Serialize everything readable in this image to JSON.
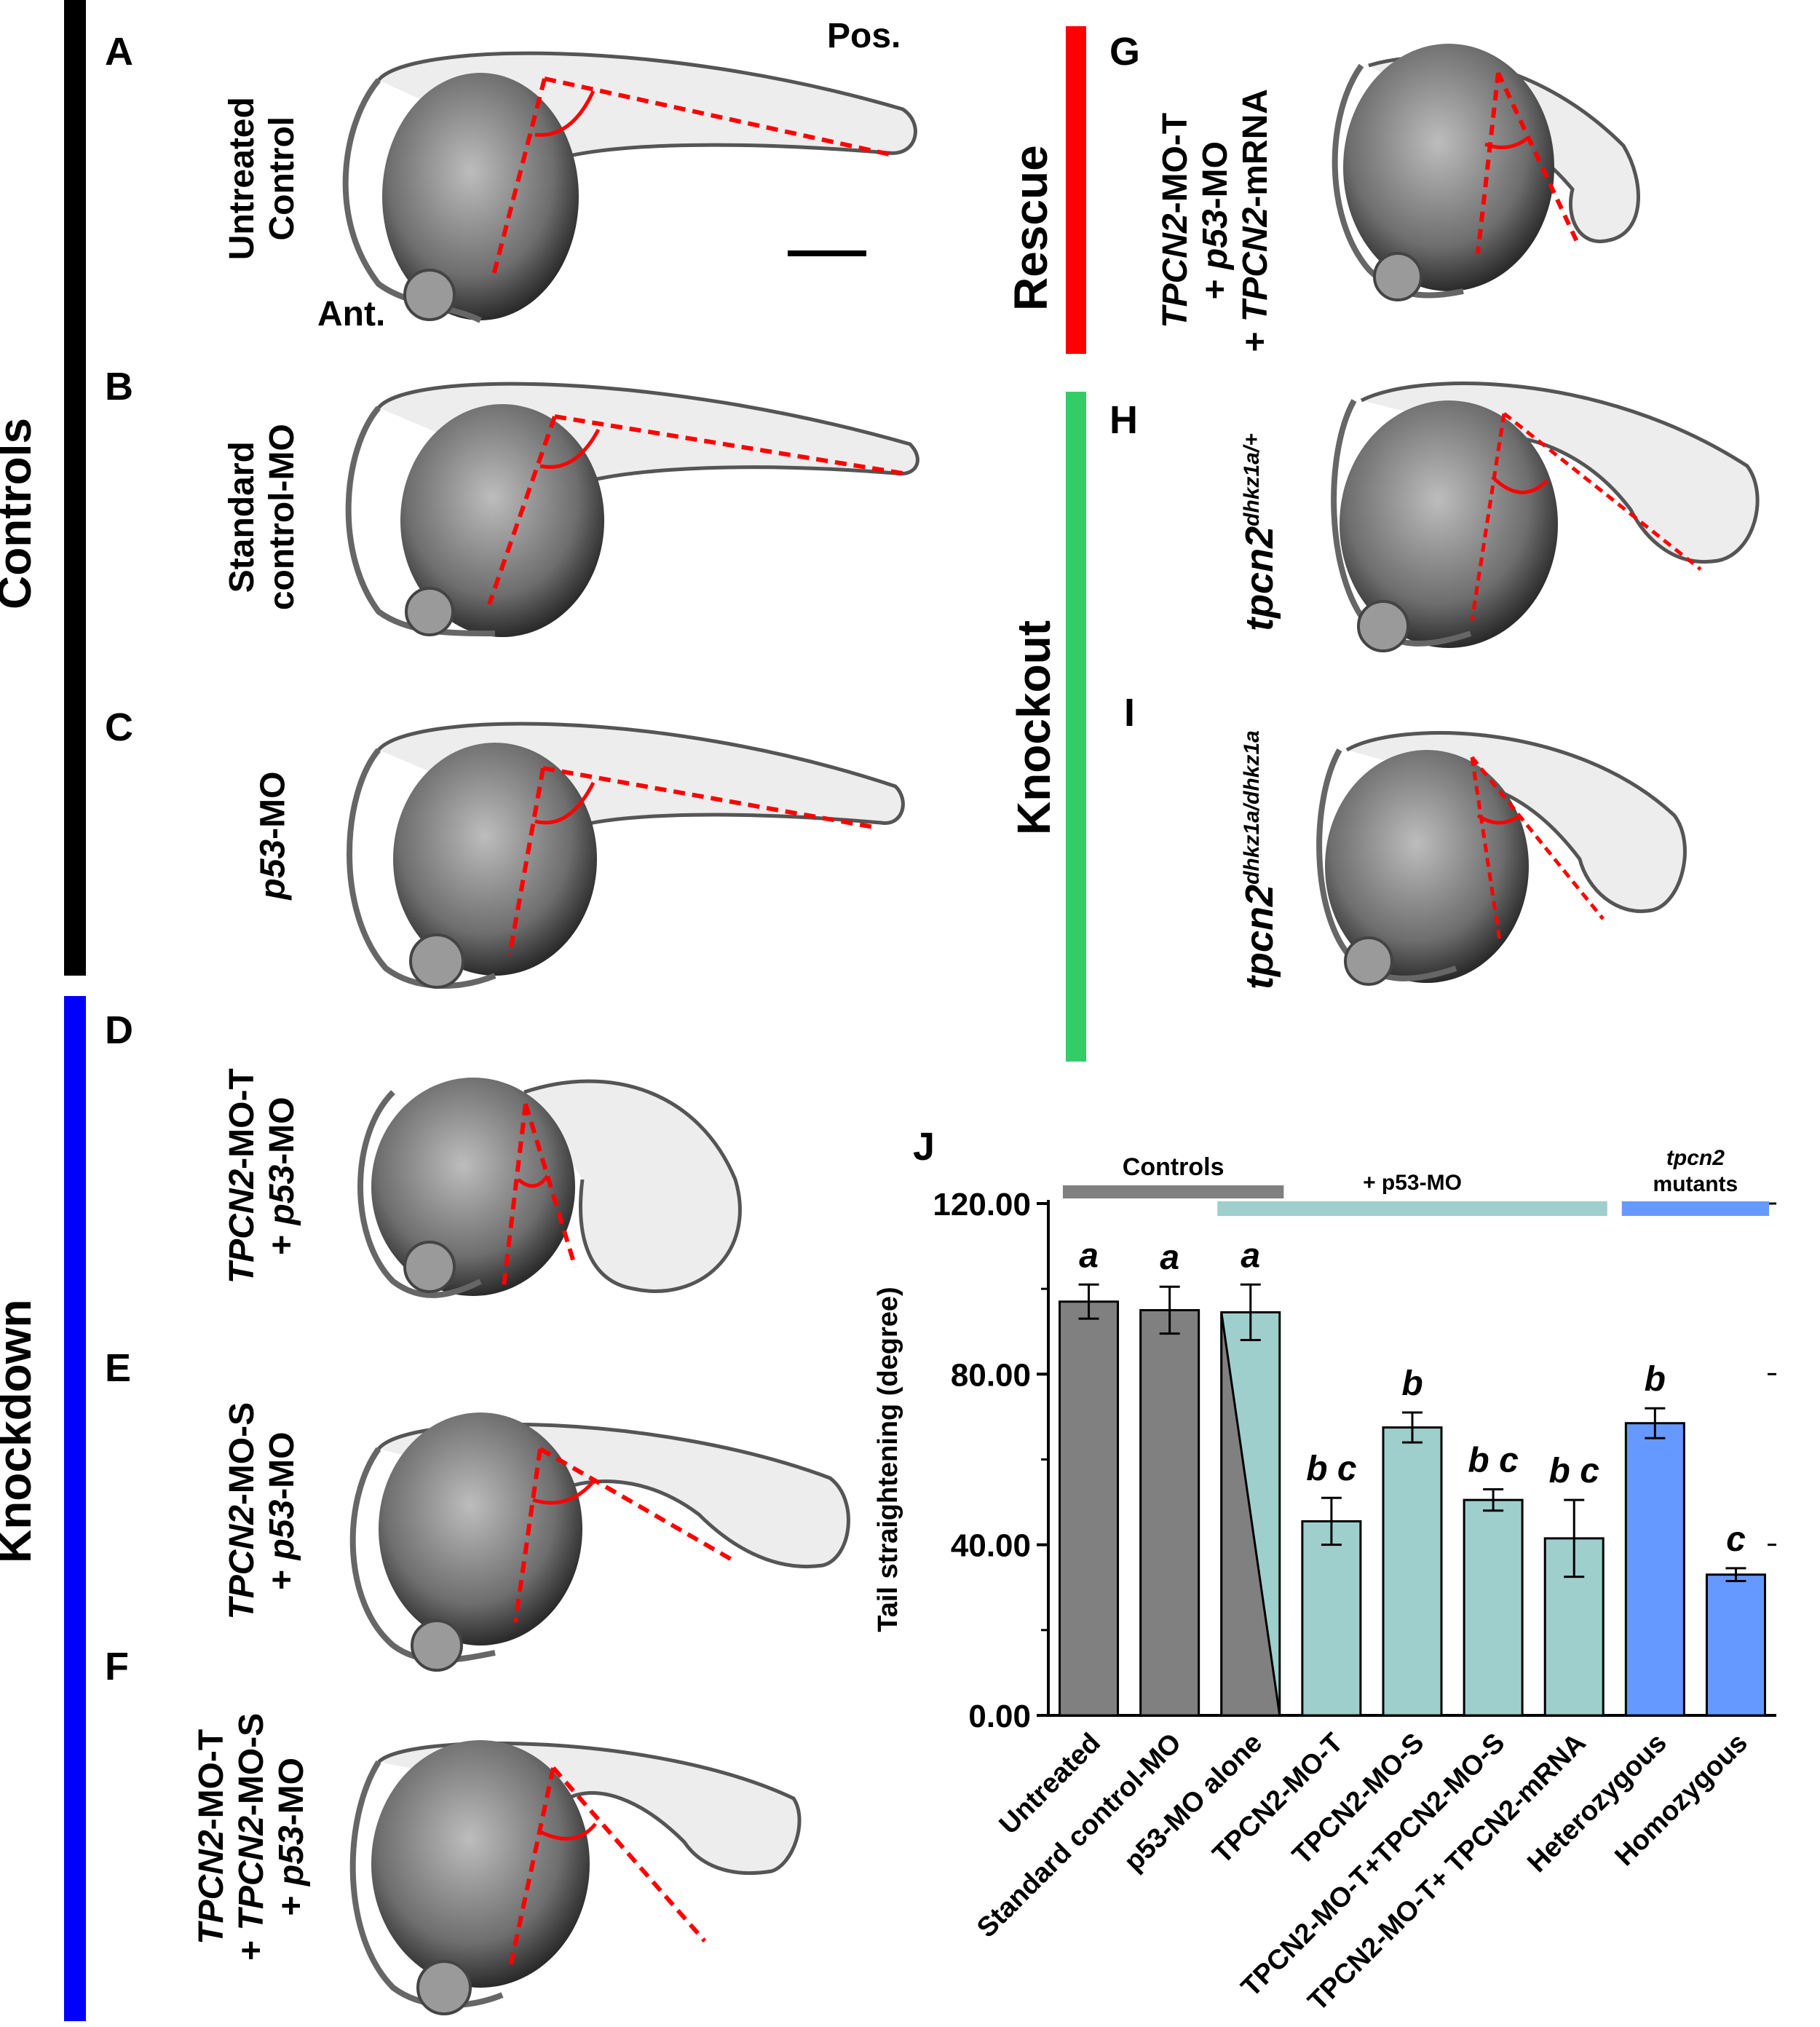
{
  "groups": {
    "controls": {
      "label": "Controls",
      "color": "#000000"
    },
    "knockdown": {
      "label": "Knockdown",
      "color": "#0000ff"
    },
    "rescue": {
      "label": "Rescue",
      "color": "#ff0000"
    },
    "knockout": {
      "label": "Knockout",
      "color": "#33cc66"
    }
  },
  "panels": {
    "A": {
      "letter": "A",
      "line1": "Untreated",
      "line2": "Control"
    },
    "B": {
      "letter": "B",
      "line1": "Standard",
      "line2": "control-MO"
    },
    "C": {
      "letter": "C",
      "label_italic": "p53",
      "label_rest": "-MO"
    },
    "D": {
      "letter": "D"
    },
    "E": {
      "letter": "E"
    },
    "F": {
      "letter": "F"
    },
    "G": {
      "letter": "G"
    },
    "H": {
      "letter": "H"
    },
    "I": {
      "letter": "I"
    },
    "J": {
      "letter": "J"
    }
  },
  "orientation": {
    "anterior": "Ant.",
    "posterior": "Pos."
  },
  "chart_data": {
    "type": "bar",
    "ylabel": "Tail straightening (degree)",
    "ylim": [
      0,
      120
    ],
    "yticks": [
      "0.00",
      "40.00",
      "80.00",
      "120.00"
    ],
    "categories": [
      "Untreated",
      "Standard control-MO",
      "p53-MO alone",
      "TPCN2-MO-T",
      "TPCN2-MO-S",
      "TPCN2-MO-T+TPCN2-MO-S",
      "TPCN2-MO-T+ TPCN2-mRNA",
      "Heterozygous",
      "Homozygous"
    ],
    "values": [
      97,
      95,
      94.5,
      45.5,
      67.5,
      50.5,
      41.5,
      68.5,
      33
    ],
    "errors": [
      4,
      5.5,
      6.5,
      5.5,
      3.5,
      2.5,
      9,
      3.5,
      1.5
    ],
    "letters": [
      "a",
      "a",
      "a",
      "b c",
      "b",
      "b c",
      "b c",
      "b",
      "c"
    ],
    "colors": [
      "#808080",
      "#808080",
      "split",
      "#9ecfcc",
      "#9ecfcc",
      "#9ecfcc",
      "#9ecfcc",
      "#6699ff",
      "#6699ff"
    ],
    "group_bars": [
      {
        "label": "Controls",
        "color": "#808080"
      },
      {
        "label": "+ p53-MO",
        "color": "#9ecfcc"
      },
      {
        "label_line1": "tpcn2",
        "label_line2": "mutants",
        "color": "#6699ff"
      }
    ]
  }
}
